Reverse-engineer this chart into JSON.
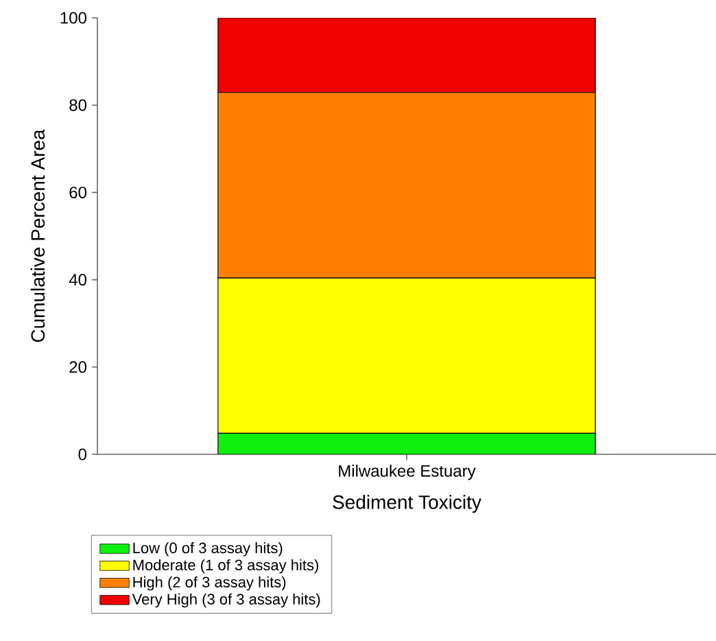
{
  "chart_data": {
    "type": "bar",
    "stacked": true,
    "xlabel": "Sediment Toxicity",
    "ylabel": "Cumulative Percent Area",
    "categories": [
      "Milwaukee Estuary"
    ],
    "series": [
      {
        "name": "Low (0 of 3 assay hits)",
        "color": "#10f010",
        "values": [
          4.8
        ]
      },
      {
        "name": "Moderate (1 of 3 assay hits)",
        "color": "#ffff00",
        "values": [
          35.6
        ]
      },
      {
        "name": "High (2 of 3 assay hits)",
        "color": "#ff8000",
        "values": [
          42.5
        ]
      },
      {
        "name": "Very High (3 of 3 assay hits)",
        "color": "#f00000",
        "values": [
          17.1
        ]
      }
    ],
    "ylim": [
      0,
      100
    ],
    "yticks": [
      0,
      20,
      40,
      60,
      80,
      100
    ],
    "legend": "bottom left",
    "grid": false
  }
}
